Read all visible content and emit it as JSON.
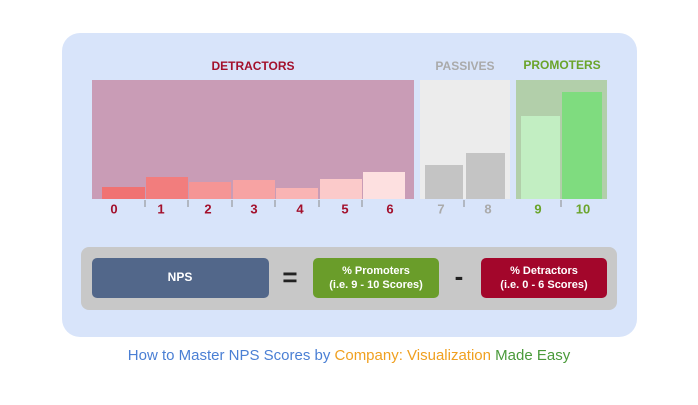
{
  "groups": [
    {
      "title": "DETRACTORS",
      "scores": [
        "0",
        "1",
        "2",
        "3",
        "4",
        "5",
        "6"
      ]
    },
    {
      "title": "PASSIVES",
      "scores": [
        "7",
        "8"
      ]
    },
    {
      "title": "PROMOTERS",
      "scores": [
        "9",
        "10"
      ]
    }
  ],
  "formula": {
    "result": "NPS",
    "equals": "=",
    "promoters": [
      "% Promoters",
      "(i.e. 9 - 10 Scores)"
    ],
    "minus": "-",
    "detractors": [
      "% Detractors",
      "(i.e. 0 - 6 Scores)"
    ]
  },
  "caption": [
    "How to Master NPS Scores by ",
    "Company: Visualization",
    " Made Easy"
  ]
}
